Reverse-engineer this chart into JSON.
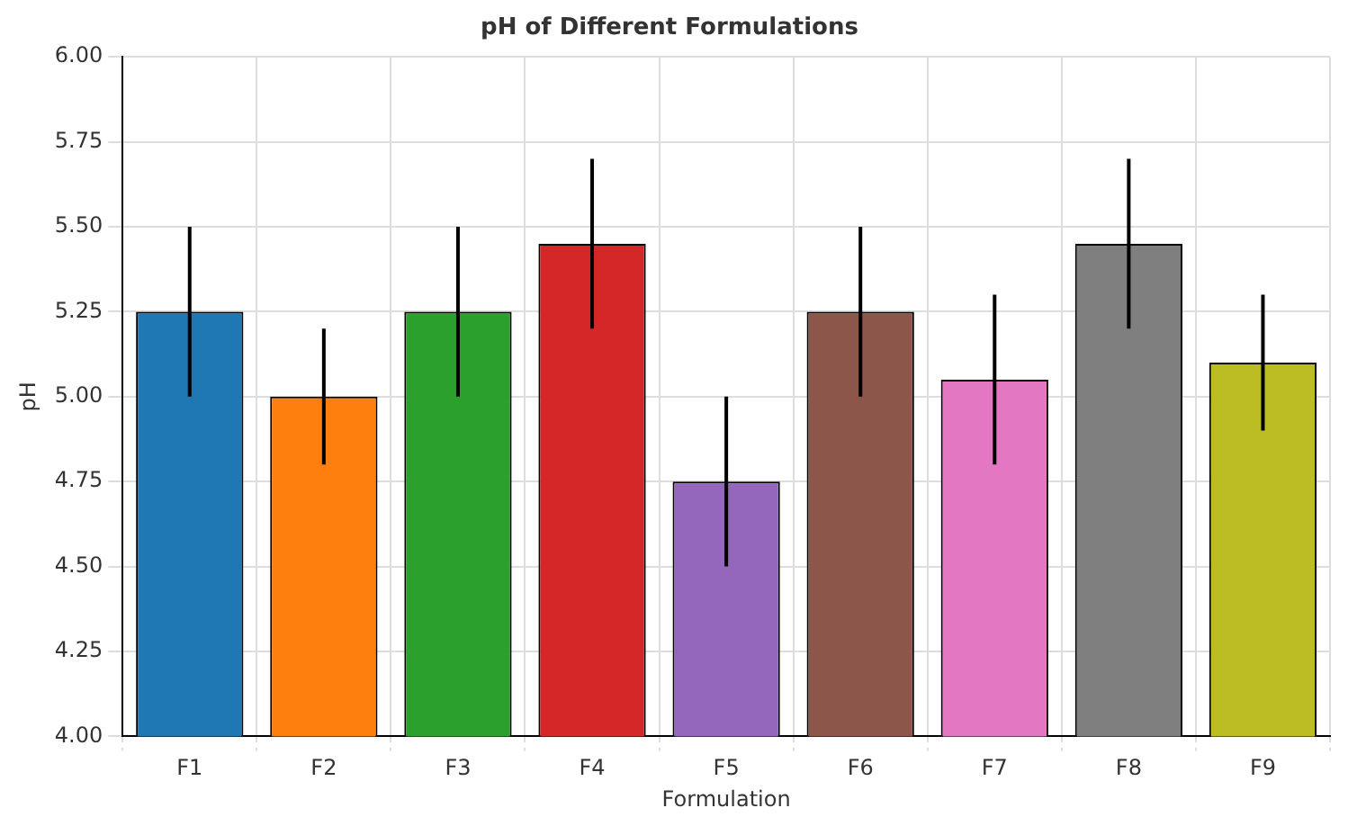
{
  "chart_data": {
    "type": "bar",
    "title": "pH of Different Formulations",
    "xlabel": "Formulation",
    "ylabel": "pH",
    "categories": [
      "F1",
      "F2",
      "F3",
      "F4",
      "F5",
      "F6",
      "F7",
      "F8",
      "F9"
    ],
    "values": [
      5.25,
      5.0,
      5.25,
      5.45,
      4.75,
      5.25,
      5.05,
      5.45,
      5.1
    ],
    "errors": [
      0.25,
      0.2,
      0.25,
      0.25,
      0.25,
      0.25,
      0.25,
      0.25,
      0.2
    ],
    "colors": [
      "#1f77b4",
      "#ff7f0e",
      "#2ca02c",
      "#d62728",
      "#9467bd",
      "#8c564b",
      "#e377c2",
      "#7f7f7f",
      "#bcbd22"
    ],
    "ylim": [
      4,
      6
    ],
    "yticks": [
      {
        "value": 4,
        "label": "4.00"
      },
      {
        "value": 4.25,
        "label": "4.25"
      },
      {
        "value": 4.5,
        "label": "4.50"
      },
      {
        "value": 4.75,
        "label": "4.75"
      },
      {
        "value": 5,
        "label": "5.00"
      },
      {
        "value": 5.25,
        "label": "5.25"
      },
      {
        "value": 5.5,
        "label": "5.50"
      },
      {
        "value": 5.75,
        "label": "5.75"
      },
      {
        "value": 6,
        "label": "6.00"
      }
    ],
    "grid": true,
    "legend": false
  }
}
